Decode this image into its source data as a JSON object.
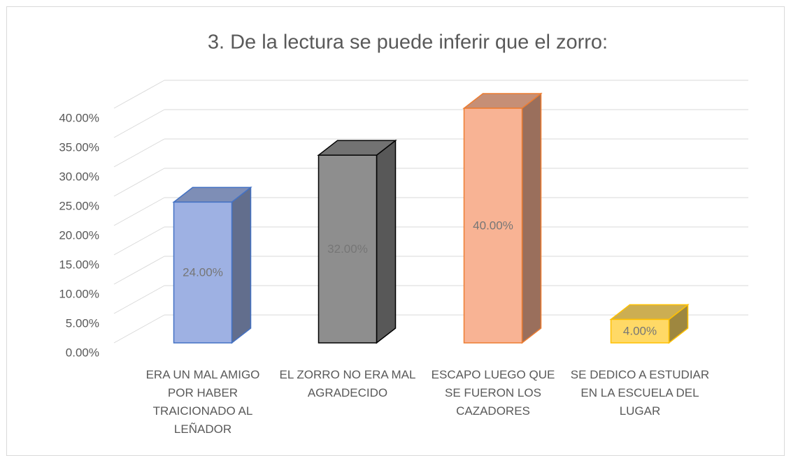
{
  "chart_data": {
    "type": "bar3d",
    "title": "3. De la lectura se puede inferir que el zorro:",
    "categories": [
      "ERA UN MAL AMIGO POR HABER TRAICIONADO AL LEÑADOR",
      "EL ZORRO NO ERA MAL AGRADECIDO",
      "ESCAPO LUEGO QUE SE FUERON LOS CAZADORES",
      "SE DEDICO A ESTUDIAR EN LA ESCUELA DEL LUGAR"
    ],
    "values": [
      24,
      32,
      40,
      4
    ],
    "value_labels": [
      "24.00%",
      "32.00%",
      "40.00%",
      "4.00%"
    ],
    "colors": [
      "#9eb1e3",
      "#8e8e8e",
      "#f8b394",
      "#ffd966"
    ],
    "edge_colors": [
      "#4472c4",
      "#000000",
      "#ed7d31",
      "#ffc000"
    ],
    "ylim": [
      0,
      40
    ],
    "yticks": [
      {
        "value": 0,
        "label": "0.00%"
      },
      {
        "value": 5,
        "label": "5.00%"
      },
      {
        "value": 10,
        "label": "10.00%"
      },
      {
        "value": 15,
        "label": "15.00%"
      },
      {
        "value": 20,
        "label": "20.00%"
      },
      {
        "value": 25,
        "label": "25.00%"
      },
      {
        "value": 30,
        "label": "30.00%"
      },
      {
        "value": 35,
        "label": "35.00%"
      },
      {
        "value": 40,
        "label": "40.00%"
      }
    ],
    "grid": true
  }
}
